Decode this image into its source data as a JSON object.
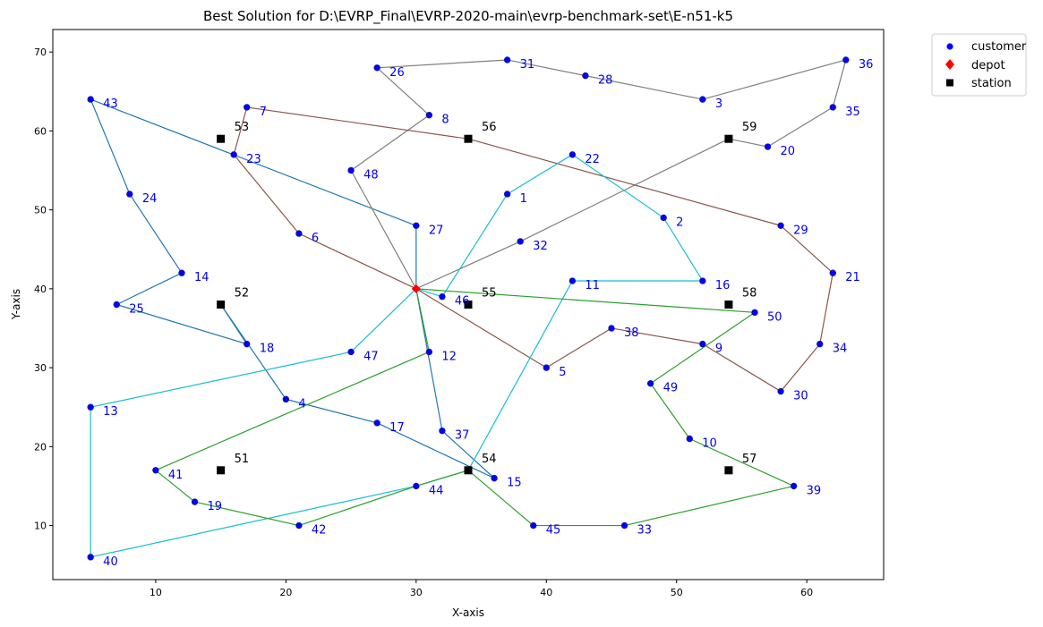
{
  "chart_data": {
    "type": "scatter",
    "title": "Best Solution for D:\\EVRP_Final\\EVRP-2020-main\\evrp-benchmark-set\\E-n51-k5",
    "xlabel": "X-axis",
    "ylabel": "Y-axis",
    "xlim": [
      2.1,
      65.9
    ],
    "ylim": [
      3.15,
      72.85
    ],
    "xticks": [
      10,
      20,
      30,
      40,
      50,
      60
    ],
    "yticks": [
      10,
      20,
      30,
      40,
      50,
      60,
      70
    ],
    "grid": false,
    "legend": {
      "placement": "outside-top-right",
      "entries": [
        {
          "name": "customer",
          "marker": "circle",
          "color": "#0000ff"
        },
        {
          "name": "depot",
          "marker": "diamond",
          "color": "#ff0000"
        },
        {
          "name": "station",
          "marker": "square",
          "color": "#000000"
        }
      ]
    },
    "depot": {
      "id": "1",
      "x": 30,
      "y": 40
    },
    "customers": [
      {
        "label": "1",
        "x": 37,
        "y": 52
      },
      {
        "label": "2",
        "x": 49,
        "y": 49
      },
      {
        "label": "3",
        "x": 52,
        "y": 64
      },
      {
        "label": "4",
        "x": 20,
        "y": 26
      },
      {
        "label": "5",
        "x": 40,
        "y": 30
      },
      {
        "label": "6",
        "x": 21,
        "y": 47
      },
      {
        "label": "7",
        "x": 17,
        "y": 63
      },
      {
        "label": "8",
        "x": 31,
        "y": 62
      },
      {
        "label": "9",
        "x": 52,
        "y": 33
      },
      {
        "label": "10",
        "x": 51,
        "y": 21
      },
      {
        "label": "11",
        "x": 42,
        "y": 41
      },
      {
        "label": "12",
        "x": 31,
        "y": 32
      },
      {
        "label": "13",
        "x": 5,
        "y": 25
      },
      {
        "label": "14",
        "x": 12,
        "y": 42
      },
      {
        "label": "15",
        "x": 36,
        "y": 16
      },
      {
        "label": "16",
        "x": 52,
        "y": 41
      },
      {
        "label": "17",
        "x": 27,
        "y": 23
      },
      {
        "label": "18",
        "x": 17,
        "y": 33
      },
      {
        "label": "19",
        "x": 13,
        "y": 13
      },
      {
        "label": "20",
        "x": 57,
        "y": 58
      },
      {
        "label": "21",
        "x": 62,
        "y": 42
      },
      {
        "label": "22",
        "x": 42,
        "y": 57
      },
      {
        "label": "23",
        "x": 16,
        "y": 57
      },
      {
        "label": "24",
        "x": 8,
        "y": 52
      },
      {
        "label": "25",
        "x": 7,
        "y": 38
      },
      {
        "label": "26",
        "x": 27,
        "y": 68
      },
      {
        "label": "27",
        "x": 30,
        "y": 48
      },
      {
        "label": "28",
        "x": 43,
        "y": 67
      },
      {
        "label": "29",
        "x": 58,
        "y": 48
      },
      {
        "label": "30",
        "x": 58,
        "y": 27
      },
      {
        "label": "31",
        "x": 37,
        "y": 69
      },
      {
        "label": "32",
        "x": 38,
        "y": 46
      },
      {
        "label": "33",
        "x": 46,
        "y": 10
      },
      {
        "label": "34",
        "x": 61,
        "y": 33
      },
      {
        "label": "35",
        "x": 62,
        "y": 63
      },
      {
        "label": "36",
        "x": 63,
        "y": 69
      },
      {
        "label": "37",
        "x": 32,
        "y": 22
      },
      {
        "label": "38",
        "x": 45,
        "y": 35
      },
      {
        "label": "39",
        "x": 59,
        "y": 15
      },
      {
        "label": "40",
        "x": 5,
        "y": 6
      },
      {
        "label": "41",
        "x": 10,
        "y": 17
      },
      {
        "label": "42",
        "x": 21,
        "y": 10
      },
      {
        "label": "43",
        "x": 5,
        "y": 64
      },
      {
        "label": "44",
        "x": 30,
        "y": 15
      },
      {
        "label": "45",
        "x": 39,
        "y": 10
      },
      {
        "label": "46",
        "x": 32,
        "y": 39
      },
      {
        "label": "47",
        "x": 25,
        "y": 32
      },
      {
        "label": "48",
        "x": 25,
        "y": 55
      },
      {
        "label": "49",
        "x": 48,
        "y": 28
      },
      {
        "label": "50",
        "x": 56,
        "y": 37
      }
    ],
    "stations": [
      {
        "label": "51",
        "x": 15,
        "y": 17
      },
      {
        "label": "52",
        "x": 15,
        "y": 38
      },
      {
        "label": "53",
        "x": 15,
        "y": 59
      },
      {
        "label": "54",
        "x": 34,
        "y": 17
      },
      {
        "label": "55",
        "x": 34,
        "y": 38
      },
      {
        "label": "56",
        "x": 34,
        "y": 59
      },
      {
        "label": "57",
        "x": 54,
        "y": 17
      },
      {
        "label": "58",
        "x": 54,
        "y": 38
      },
      {
        "label": "59",
        "x": 54,
        "y": 59
      }
    ],
    "routes": [
      {
        "color": "#1f77b4",
        "path": [
          [
            30,
            40
          ],
          [
            30,
            48
          ],
          [
            5,
            64
          ],
          [
            8,
            52
          ],
          [
            12,
            42
          ],
          [
            7,
            38
          ],
          [
            17,
            33
          ],
          [
            15,
            38
          ],
          [
            20,
            26
          ],
          [
            27,
            23
          ],
          [
            36,
            16
          ],
          [
            32,
            22
          ],
          [
            30,
            40
          ]
        ]
      },
      {
        "color": "#7f7f7f",
        "path": [
          [
            30,
            40
          ],
          [
            25,
            55
          ],
          [
            31,
            62
          ],
          [
            27,
            68
          ],
          [
            37,
            69
          ],
          [
            43,
            67
          ],
          [
            52,
            64
          ],
          [
            63,
            69
          ],
          [
            62,
            63
          ],
          [
            57,
            58
          ],
          [
            54,
            59
          ],
          [
            38,
            46
          ],
          [
            30,
            40
          ]
        ]
      },
      {
        "color": "#8c564b",
        "path": [
          [
            30,
            40
          ],
          [
            21,
            47
          ],
          [
            16,
            57
          ],
          [
            17,
            63
          ],
          [
            34,
            59
          ],
          [
            58,
            48
          ],
          [
            62,
            42
          ],
          [
            61,
            33
          ],
          [
            58,
            27
          ],
          [
            52,
            33
          ],
          [
            45,
            35
          ],
          [
            40,
            30
          ],
          [
            30,
            40
          ]
        ]
      },
      {
        "color": "#17becf",
        "path": [
          [
            30,
            40
          ],
          [
            32,
            39
          ],
          [
            37,
            52
          ],
          [
            42,
            57
          ],
          [
            49,
            49
          ],
          [
            52,
            41
          ],
          [
            42,
            41
          ],
          [
            34,
            17
          ],
          [
            30,
            15
          ],
          [
            5,
            6
          ],
          [
            5,
            25
          ],
          [
            25,
            32
          ],
          [
            30,
            40
          ]
        ]
      },
      {
        "color": "#2ca02c",
        "path": [
          [
            30,
            40
          ],
          [
            56,
            37
          ],
          [
            48,
            28
          ],
          [
            51,
            21
          ],
          [
            59,
            15
          ],
          [
            46,
            10
          ],
          [
            39,
            10
          ],
          [
            34,
            17
          ],
          [
            30,
            15
          ],
          [
            21,
            10
          ],
          [
            13,
            13
          ],
          [
            10,
            17
          ],
          [
            31,
            32
          ],
          [
            30,
            40
          ]
        ]
      }
    ]
  }
}
